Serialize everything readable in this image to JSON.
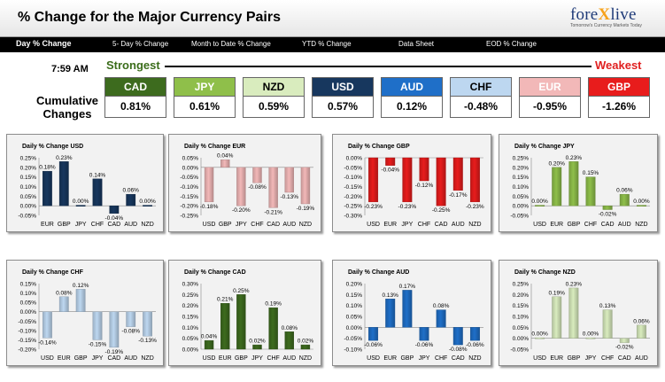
{
  "header": {
    "title": "% Change for the Major Currency Pairs"
  },
  "logo": {
    "part1": "fore",
    "x": "X",
    "part2": "live",
    "tagline": "Tomorrow's Currency Markets Today"
  },
  "nav": [
    {
      "label": "Day % Change",
      "active": true
    },
    {
      "label": "5- Day % Change",
      "active": false
    },
    {
      "label": "Month to Date % Change",
      "active": false
    },
    {
      "label": "YTD % Change",
      "active": false
    },
    {
      "label": "Data Sheet",
      "active": false
    },
    {
      "label": "EOD % Change",
      "active": false
    }
  ],
  "summary": {
    "time": "7:59 AM",
    "strongest_label": "Strongest",
    "weakest_label": "Weakest",
    "cumulative_label": "Cumulative Changes",
    "currencies": [
      {
        "code": "CAD",
        "value": "0.81%",
        "bg": "#3d6b1e",
        "fg": "#ffffff"
      },
      {
        "code": "JPY",
        "value": "0.61%",
        "bg": "#8fbf4a",
        "fg": "#ffffff"
      },
      {
        "code": "NZD",
        "value": "0.59%",
        "bg": "#d9ecbe",
        "fg": "#000000"
      },
      {
        "code": "USD",
        "value": "0.57%",
        "bg": "#17375e",
        "fg": "#ffffff"
      },
      {
        "code": "AUD",
        "value": "0.12%",
        "bg": "#1f6fc8",
        "fg": "#ffffff"
      },
      {
        "code": "CHF",
        "value": "-0.48%",
        "bg": "#bdd7f0",
        "fg": "#000000"
      },
      {
        "code": "EUR",
        "value": "-0.95%",
        "bg": "#f2b8b8",
        "fg": "#ffffff"
      },
      {
        "code": "GBP",
        "value": "-1.26%",
        "bg": "#e81c1c",
        "fg": "#ffffff"
      }
    ]
  },
  "chart_data": [
    {
      "type": "bar",
      "title": "Daily % Change USD",
      "base": "USD",
      "categories": [
        "EUR",
        "GBP",
        "JPY",
        "CHF",
        "CAD",
        "AUD",
        "NZD"
      ],
      "values": [
        0.18,
        0.23,
        0.0,
        0.14,
        -0.04,
        0.06,
        0.0
      ],
      "labels": [
        "0.18%",
        "0.23%",
        "0.00%",
        "0.14%",
        "-0.04%",
        "0.06%",
        "0.00%"
      ],
      "ylim": [
        -0.05,
        0.25
      ],
      "ticks": [
        "0.25%",
        "0.20%",
        "0.15%",
        "0.10%",
        "0.05%",
        "0.00%",
        "-0.05%"
      ],
      "color": "#17375e"
    },
    {
      "type": "bar",
      "title": "Daily % Change EUR",
      "base": "EUR",
      "categories": [
        "USD",
        "GBP",
        "JPY",
        "CHF",
        "CAD",
        "AUD",
        "NZD"
      ],
      "values": [
        -0.18,
        0.04,
        -0.2,
        -0.08,
        -0.21,
        -0.13,
        -0.19
      ],
      "labels": [
        "-0.18%",
        "0.04%",
        "-0.20%",
        "-0.08%",
        "-0.21%",
        "-0.13%",
        "-0.19%"
      ],
      "ylim": [
        -0.25,
        0.05
      ],
      "ticks": [
        "0.05%",
        "0.00%",
        "-0.05%",
        "-0.10%",
        "-0.15%",
        "-0.20%",
        "-0.25%"
      ],
      "color": "#f2b8b8"
    },
    {
      "type": "bar",
      "title": "Daily % Change GBP",
      "base": "GBP",
      "categories": [
        "USD",
        "EUR",
        "JPY",
        "CHF",
        "CAD",
        "AUD",
        "NZD"
      ],
      "values": [
        -0.23,
        -0.04,
        -0.23,
        -0.12,
        -0.25,
        -0.17,
        -0.23
      ],
      "labels": [
        "-0.23%",
        "-0.04%",
        "-0.23%",
        "-0.12%",
        "-0.25%",
        "-0.17%",
        "-0.23%"
      ],
      "ylim": [
        -0.3,
        0.0
      ],
      "ticks": [
        "0.00%",
        "-0.05%",
        "-0.10%",
        "-0.15%",
        "-0.20%",
        "-0.25%",
        "-0.30%"
      ],
      "color": "#e81c1c"
    },
    {
      "type": "bar",
      "title": "Daily % Change JPY",
      "base": "JPY",
      "categories": [
        "USD",
        "EUR",
        "GBP",
        "CHF",
        "CAD",
        "AUD",
        "NZD"
      ],
      "values": [
        0.0,
        0.2,
        0.23,
        0.15,
        -0.02,
        0.06,
        0.0
      ],
      "labels": [
        "0.00%",
        "0.20%",
        "0.23%",
        "0.15%",
        "-0.02%",
        "0.06%",
        "0.00%"
      ],
      "ylim": [
        -0.05,
        0.25
      ],
      "ticks": [
        "0.25%",
        "0.20%",
        "0.15%",
        "0.10%",
        "0.05%",
        "0.00%",
        "-0.05%"
      ],
      "color": "#8fbf4a"
    },
    {
      "type": "bar",
      "title": "Daily % Change CHF",
      "base": "CHF",
      "categories": [
        "USD",
        "EUR",
        "GBP",
        "JPY",
        "CAD",
        "AUD",
        "NZD"
      ],
      "values": [
        -0.14,
        0.08,
        0.12,
        -0.15,
        -0.19,
        -0.08,
        -0.13
      ],
      "labels": [
        "-0.14%",
        "0.08%",
        "0.12%",
        "-0.15%",
        "-0.19%",
        "-0.08%",
        "-0.13%"
      ],
      "ylim": [
        -0.2,
        0.15
      ],
      "ticks": [
        "0.15%",
        "0.10%",
        "0.05%",
        "0.00%",
        "-0.05%",
        "-0.10%",
        "-0.15%",
        "-0.20%"
      ],
      "color": "#bdd7f0"
    },
    {
      "type": "bar",
      "title": "Daily % Change CAD",
      "base": "CAD",
      "categories": [
        "USD",
        "EUR",
        "GBP",
        "JPY",
        "CHF",
        "AUD",
        "NZD"
      ],
      "values": [
        0.04,
        0.21,
        0.25,
        0.02,
        0.19,
        0.08,
        0.02
      ],
      "labels": [
        "0.04%",
        "0.21%",
        "0.25%",
        "0.02%",
        "0.19%",
        "0.08%",
        "0.02%"
      ],
      "ylim": [
        0.0,
        0.3
      ],
      "ticks": [
        "0.30%",
        "0.25%",
        "0.20%",
        "0.15%",
        "0.10%",
        "0.05%",
        "0.00%"
      ],
      "color": "#3d6b1e"
    },
    {
      "type": "bar",
      "title": "Daily % Change AUD",
      "base": "AUD",
      "categories": [
        "USD",
        "EUR",
        "GBP",
        "JPY",
        "CHF",
        "CAD",
        "NZD"
      ],
      "values": [
        -0.06,
        0.13,
        0.17,
        -0.06,
        0.08,
        -0.08,
        -0.06
      ],
      "labels": [
        "-0.06%",
        "0.13%",
        "0.17%",
        "-0.06%",
        "0.08%",
        "-0.08%",
        "-0.06%"
      ],
      "ylim": [
        -0.1,
        0.2
      ],
      "ticks": [
        "0.20%",
        "0.15%",
        "0.10%",
        "0.05%",
        "0.00%",
        "-0.05%",
        "-0.10%"
      ],
      "color": "#1f6fc8"
    },
    {
      "type": "bar",
      "title": "Daily % Change NZD",
      "base": "NZD",
      "categories": [
        "USD",
        "EUR",
        "GBP",
        "JPY",
        "CHF",
        "CAD",
        "AUD"
      ],
      "values": [
        0.0,
        0.19,
        0.23,
        0.0,
        0.13,
        -0.02,
        0.06
      ],
      "labels": [
        "0.00%",
        "0.19%",
        "0.23%",
        "0.00%",
        "0.13%",
        "-0.02%",
        "0.06%"
      ],
      "ylim": [
        -0.05,
        0.25
      ],
      "ticks": [
        "0.25%",
        "0.20%",
        "0.15%",
        "0.10%",
        "0.05%",
        "0.00%",
        "-0.05%"
      ],
      "color": "#d9ecbe"
    }
  ]
}
